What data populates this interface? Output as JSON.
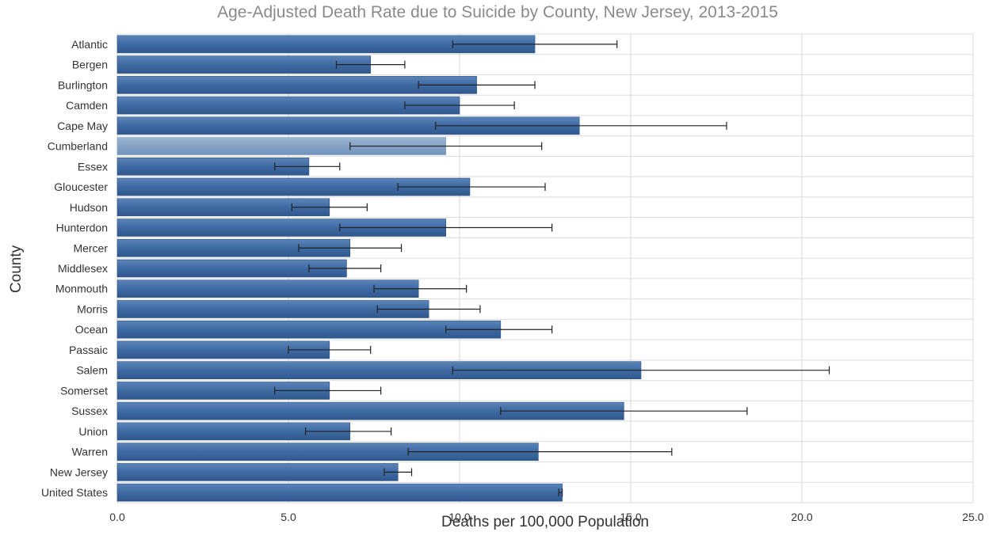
{
  "chart_data": {
    "type": "bar",
    "orientation": "horizontal",
    "title": "Age-Adjusted Death Rate due to Suicide by County, New Jersey, 2013-2015",
    "xlabel": "Deaths per 100,000 Population",
    "ylabel": "County",
    "xlim": [
      0,
      25
    ],
    "xticks": [
      "0.0",
      "5.0",
      "10.0",
      "15.0",
      "20.0",
      "25.0"
    ],
    "grid": true,
    "colors": {
      "bar": "#3e6aa3",
      "bar_highlight": "#86a3c6",
      "bar_edge": "#2c5287"
    },
    "highlighted": "Cumberland",
    "categories": [
      "Atlantic",
      "Bergen",
      "Burlington",
      "Camden",
      "Cape May",
      "Cumberland",
      "Essex",
      "Gloucester",
      "Hudson",
      "Hunterdon",
      "Mercer",
      "Middlesex",
      "Monmouth",
      "Morris",
      "Ocean",
      "Passaic",
      "Salem",
      "Somerset",
      "Sussex",
      "Union",
      "Warren",
      "New Jersey",
      "United States"
    ],
    "values": [
      12.2,
      7.4,
      10.5,
      10.0,
      13.5,
      9.6,
      5.6,
      10.3,
      6.2,
      9.6,
      6.8,
      6.7,
      8.8,
      9.1,
      11.2,
      6.2,
      15.3,
      6.2,
      14.8,
      6.8,
      12.3,
      8.2,
      13.0
    ],
    "ci_low": [
      9.8,
      6.4,
      8.8,
      8.4,
      9.3,
      6.8,
      4.6,
      8.2,
      5.1,
      6.5,
      5.3,
      5.6,
      7.5,
      7.6,
      9.6,
      5.0,
      9.8,
      4.6,
      11.2,
      5.5,
      8.5,
      7.8,
      12.9
    ],
    "ci_high": [
      14.6,
      8.4,
      12.2,
      11.6,
      17.8,
      12.4,
      6.5,
      12.5,
      7.3,
      12.7,
      8.3,
      7.7,
      10.2,
      10.6,
      12.7,
      7.4,
      20.8,
      7.7,
      18.4,
      8.0,
      16.2,
      8.6,
      13.0
    ]
  }
}
